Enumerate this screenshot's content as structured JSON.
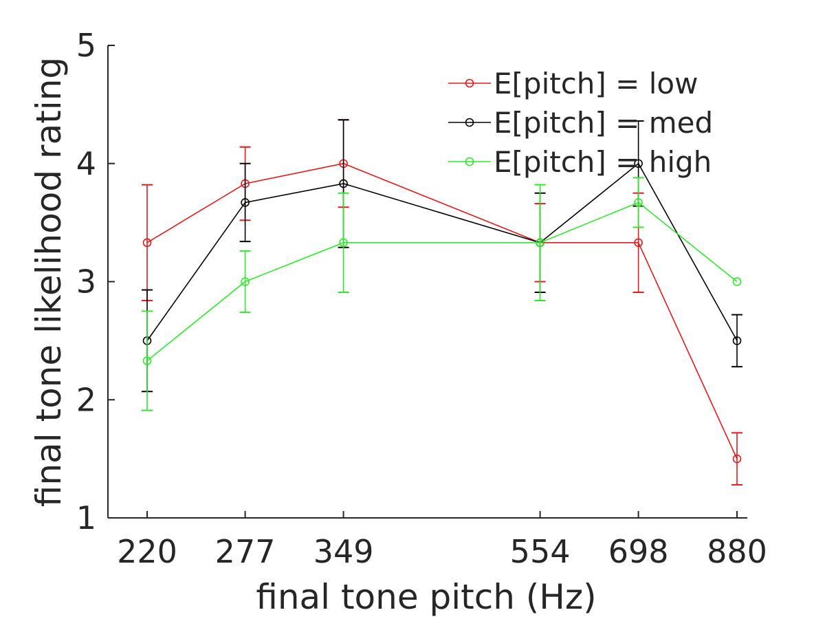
{
  "chart_data": {
    "type": "line",
    "xlabel": "final tone pitch (Hz)",
    "ylabel": "final tone likelihood rating",
    "x": [
      220,
      277,
      349,
      554,
      698,
      880
    ],
    "x_tick_labels": [
      "220",
      "277",
      "349",
      "554",
      "698",
      "880"
    ],
    "ylim": [
      1,
      5
    ],
    "y_ticks": [
      1,
      2,
      3,
      4,
      5
    ],
    "y_tick_labels": [
      "1",
      "2",
      "3",
      "4",
      "5"
    ],
    "x_scale": "log",
    "grid": false,
    "legend_position": "top-right",
    "series": [
      {
        "name": "E[pitch] = low",
        "color": "#e31a1c",
        "values": [
          3.33,
          3.83,
          4.0,
          3.33,
          3.33,
          1.5
        ],
        "error": [
          0.49,
          0.31,
          0.37,
          0.33,
          0.42,
          0.22
        ]
      },
      {
        "name": "E[pitch] = med",
        "color": "#000000",
        "values": [
          2.5,
          3.67,
          3.83,
          3.33,
          4.0,
          2.5
        ],
        "error": [
          0.43,
          0.33,
          0.54,
          0.42,
          0.36,
          0.22
        ]
      },
      {
        "name": "E[pitch] = high",
        "color": "#2ee82e",
        "values": [
          2.33,
          3.0,
          3.33,
          3.33,
          3.67,
          3.0
        ],
        "error": [
          0.42,
          0.26,
          0.42,
          0.49,
          0.21,
          0.0
        ]
      }
    ]
  }
}
